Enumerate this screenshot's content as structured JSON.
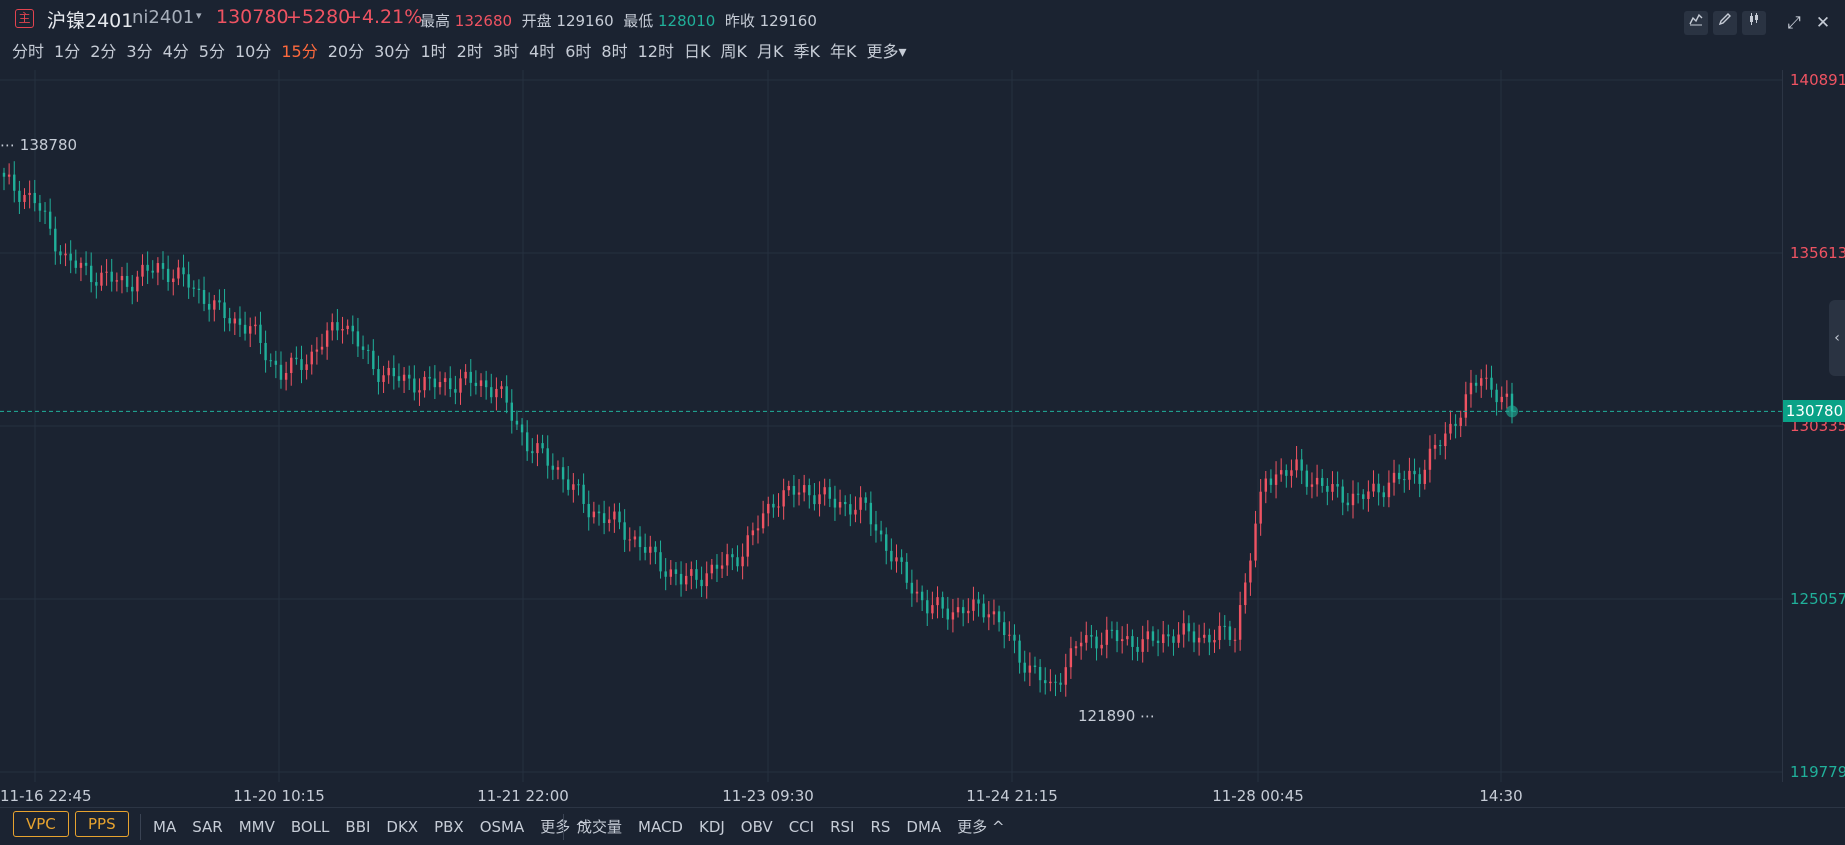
{
  "header": {
    "logo": "主",
    "name": "沪镍2401",
    "code": "ni2401",
    "caret": "▾",
    "price": "130780",
    "change": "+5280",
    "change_pct": "+4.21%",
    "stats": {
      "high_label": "最高",
      "high": "132680",
      "open_label": "开盘",
      "open": "129160",
      "low_label": "最低",
      "low": "128010",
      "prev_label": "昨收",
      "prev": "129160"
    },
    "tools": [
      "line-chart-icon",
      "pencil-icon",
      "candles-icon"
    ],
    "window": {
      "expand": "⤢",
      "close": "✕"
    }
  },
  "periods": {
    "items": [
      "分时",
      "1分",
      "2分",
      "3分",
      "4分",
      "5分",
      "10分",
      "15分",
      "20分",
      "30分",
      "1时",
      "2时",
      "3时",
      "4时",
      "6时",
      "8时",
      "12时",
      "日K",
      "周K",
      "月K",
      "季K",
      "年K",
      "更多▾"
    ],
    "active": "15分"
  },
  "price_axis": {
    "labels": [
      {
        "text": "140891",
        "dir": "up",
        "value": 140891
      },
      {
        "text": "135613",
        "dir": "up",
        "value": 135613
      },
      {
        "text": "130335",
        "dir": "up",
        "value": 130335
      },
      {
        "text": "125057",
        "dir": "dn",
        "value": 125057
      },
      {
        "text": "119779",
        "dir": "dn",
        "value": 119779
      }
    ],
    "current": "130780"
  },
  "annotations": {
    "high": "138780",
    "low": "121890"
  },
  "xaxis": {
    "labels": [
      "11-16 22:45",
      "11-20 10:15",
      "11-21 22:00",
      "11-23 09:30",
      "11-24 21:15",
      "11-28 00:45",
      "14:30"
    ]
  },
  "bottom": {
    "pills": [
      "VPC",
      "PPS"
    ],
    "main_indicators": [
      "MA",
      "SAR",
      "MMV",
      "BOLL",
      "BBI",
      "DKX",
      "PBX",
      "OSMA",
      "更多 ^"
    ],
    "sub_indicators": [
      "成交量",
      "MACD",
      "KDJ",
      "OBV",
      "CCI",
      "RSI",
      "RS",
      "DMA",
      "更多 ^"
    ]
  },
  "colors": {
    "up": "#ef5362",
    "down": "#20b09a",
    "background": "#1b2331",
    "grid": "#263040",
    "active": "#ff6a3d",
    "pill": "#e7a32f"
  },
  "chart_data": {
    "type": "candlestick",
    "ylim": [
      119779,
      140891
    ],
    "anchors": [
      [
        "11-16 22:45",
        137800
      ],
      [
        "",
        137200
      ],
      [
        "",
        135400
      ],
      [
        "",
        134900
      ],
      [
        "",
        134700
      ],
      [
        "",
        135200
      ],
      [
        "11-20 10:15",
        134700
      ],
      [
        "",
        133800
      ],
      [
        "",
        133300
      ],
      [
        "",
        131900
      ],
      [
        "",
        132500
      ],
      [
        "",
        133600
      ],
      [
        "",
        132100
      ],
      [
        "",
        131700
      ],
      [
        "11-21 22:00",
        131600
      ],
      [
        "",
        131700
      ],
      [
        "",
        131500
      ],
      [
        "",
        129800
      ],
      [
        "",
        129000
      ],
      [
        "",
        127800
      ],
      [
        "",
        127300
      ],
      [
        "",
        126400
      ],
      [
        "11-23 09:30",
        125600
      ],
      [
        "",
        125900
      ],
      [
        "",
        126500
      ],
      [
        "",
        128100
      ],
      [
        "",
        128400
      ],
      [
        "",
        128000
      ],
      [
        "",
        127800
      ],
      [
        "11-24 21:15",
        126100
      ],
      [
        "",
        124800
      ],
      [
        "",
        124700
      ],
      [
        "",
        124800
      ],
      [
        "",
        123300
      ],
      [
        "",
        122300
      ],
      [
        "",
        123800
      ],
      [
        "",
        123900
      ],
      [
        "",
        123700
      ],
      [
        "",
        124000
      ],
      [
        "11-28 00:45",
        123900
      ],
      [
        "",
        124000
      ],
      [
        "",
        128800
      ],
      [
        "",
        129000
      ],
      [
        "",
        128400
      ],
      [
        "",
        128100
      ],
      [
        "",
        128600
      ],
      [
        "",
        128900
      ],
      [
        "",
        130300
      ],
      [
        "",
        131900
      ],
      [
        "14:30",
        130780
      ]
    ]
  }
}
